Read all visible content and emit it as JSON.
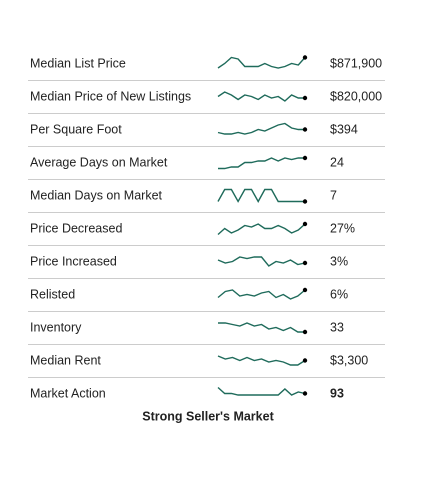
{
  "rows": [
    {
      "label": "Median List Price",
      "value": "$871,900",
      "spark": [
        2,
        5,
        9,
        8,
        3,
        3,
        3,
        5,
        3,
        2,
        3,
        5,
        4,
        9
      ]
    },
    {
      "label": "Median Price of New Listings",
      "value": "$820,000",
      "spark": [
        5,
        8,
        6,
        3,
        6,
        5,
        3,
        6,
        4,
        5,
        2,
        6,
        4,
        4
      ]
    },
    {
      "label": "Per Square Foot",
      "value": "$394",
      "spark": [
        3,
        2,
        2,
        3,
        2,
        3,
        5,
        4,
        6,
        8,
        9,
        6,
        5,
        5
      ]
    },
    {
      "label": "Average Days on Market",
      "value": "24",
      "spark": [
        1,
        1,
        2,
        2,
        5,
        5,
        6,
        6,
        8,
        6,
        8,
        7,
        8,
        8
      ]
    },
    {
      "label": "Median Days on Market",
      "value": "7",
      "spark": [
        1,
        9,
        9,
        1,
        9,
        9,
        1,
        9,
        9,
        1,
        1,
        1,
        1,
        1
      ]
    },
    {
      "label": "Price Decreased",
      "value": "27%",
      "spark": [
        1,
        5,
        2,
        4,
        7,
        6,
        8,
        5,
        5,
        7,
        5,
        2,
        4,
        8
      ]
    },
    {
      "label": "Price Increased",
      "value": "3%",
      "spark": [
        6,
        4,
        5,
        8,
        7,
        8,
        8,
        2,
        5,
        4,
        6,
        3,
        4
      ]
    },
    {
      "label": "Relisted",
      "value": "6%",
      "spark": [
        3,
        7,
        8,
        4,
        5,
        4,
        6,
        7,
        3,
        5,
        2,
        4,
        8
      ]
    },
    {
      "label": "Inventory",
      "value": "33",
      "spark": [
        8,
        8,
        7,
        6,
        8,
        6,
        7,
        4,
        5,
        3,
        5,
        2,
        2
      ]
    },
    {
      "label": "Median Rent",
      "value": "$3,300",
      "spark": [
        8,
        6,
        7,
        5,
        7,
        5,
        6,
        4,
        5,
        4,
        2,
        2,
        5
      ]
    },
    {
      "label": "Market Action",
      "value": "93",
      "spark": [
        9,
        5,
        5,
        4,
        4,
        4,
        4,
        4,
        4,
        4,
        8,
        4,
        6,
        5
      ]
    }
  ],
  "footer": "Strong Seller's Market"
}
